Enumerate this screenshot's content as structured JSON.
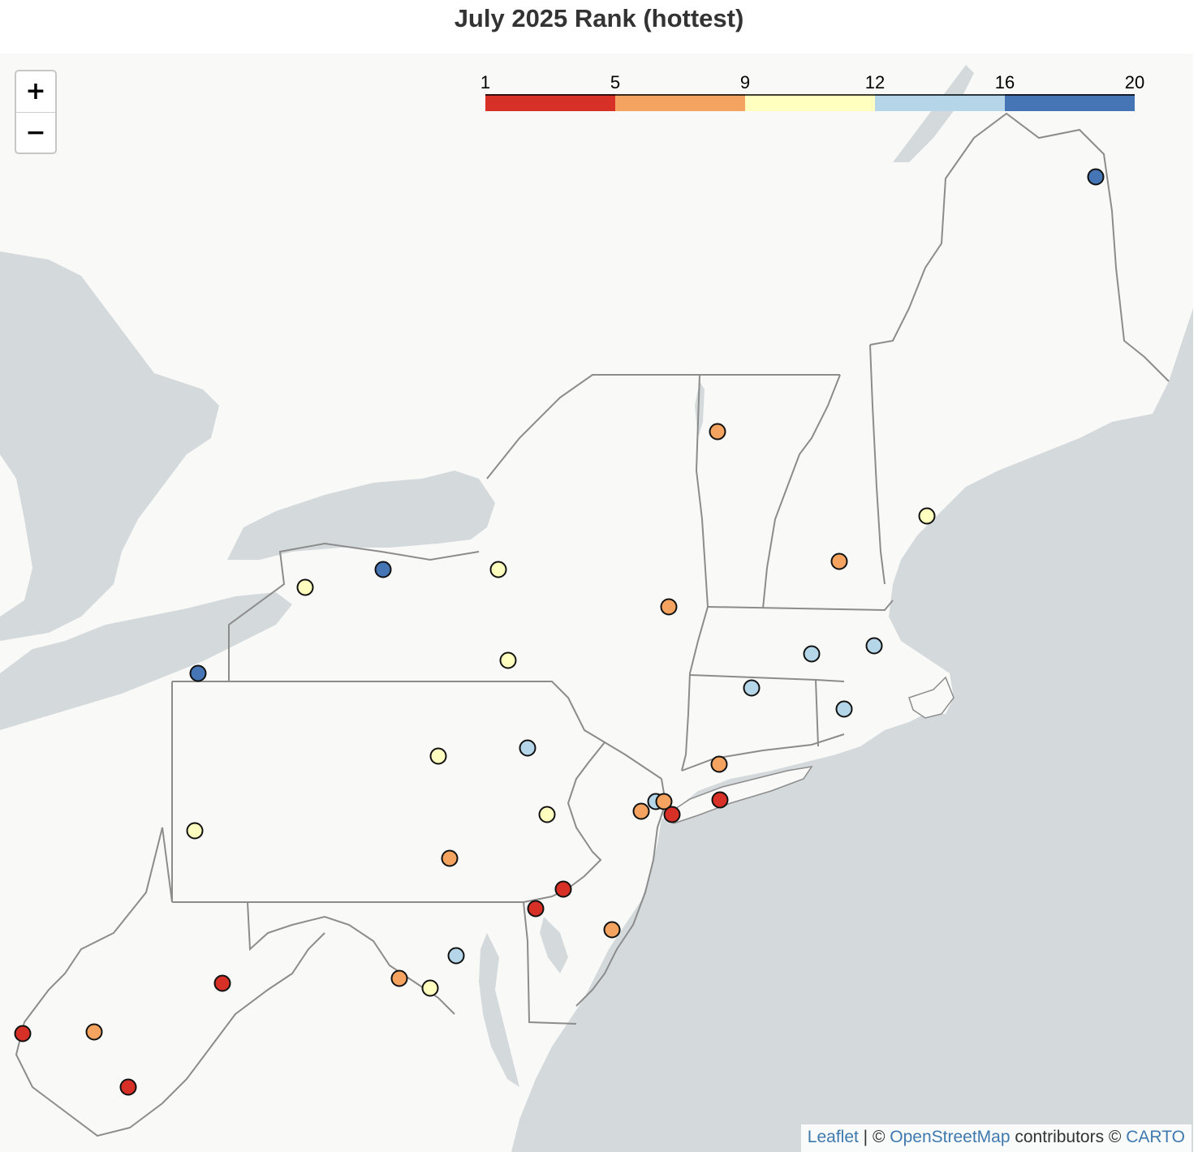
{
  "title": "July 2025 Rank (hottest)",
  "zoom": {
    "in_label": "+",
    "out_label": "−"
  },
  "attribution": {
    "leaflet": "Leaflet",
    "sep1": " | © ",
    "osm": "OpenStreetMap",
    "contributors": " contributors © ",
    "carto": "CARTO"
  },
  "legend": {
    "ticks": [
      "1",
      "5",
      "9",
      "12",
      "16",
      "20"
    ],
    "colors": [
      "#d73027",
      "#f4a460",
      "#ffffbf",
      "#b4d6e8",
      "#4575b4"
    ]
  },
  "colors": {
    "land": "#f9f9f8",
    "water": "#d4dadc",
    "state_border": "#8c8c8c",
    "marker_stroke": "#111111"
  }
}
